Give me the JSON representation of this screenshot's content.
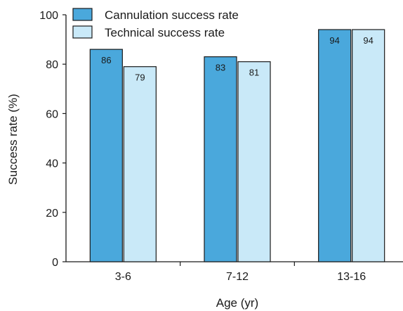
{
  "chart_data": {
    "type": "bar",
    "xlabel": "Age (yr)",
    "ylabel": "Success rate (%)",
    "ylim": [
      0,
      100
    ],
    "yticks": [
      0,
      20,
      40,
      60,
      80,
      100
    ],
    "categories": [
      "3-6",
      "7-12",
      "13-16"
    ],
    "series": [
      {
        "name": "Cannulation success rate",
        "values": [
          86,
          83,
          94
        ],
        "color": "#4aa8dc"
      },
      {
        "name": "Technical success rate",
        "values": [
          79,
          81,
          94
        ],
        "color": "#c9e9f8"
      }
    ],
    "legend": "top-left",
    "grid": false,
    "data_labels": true
  }
}
